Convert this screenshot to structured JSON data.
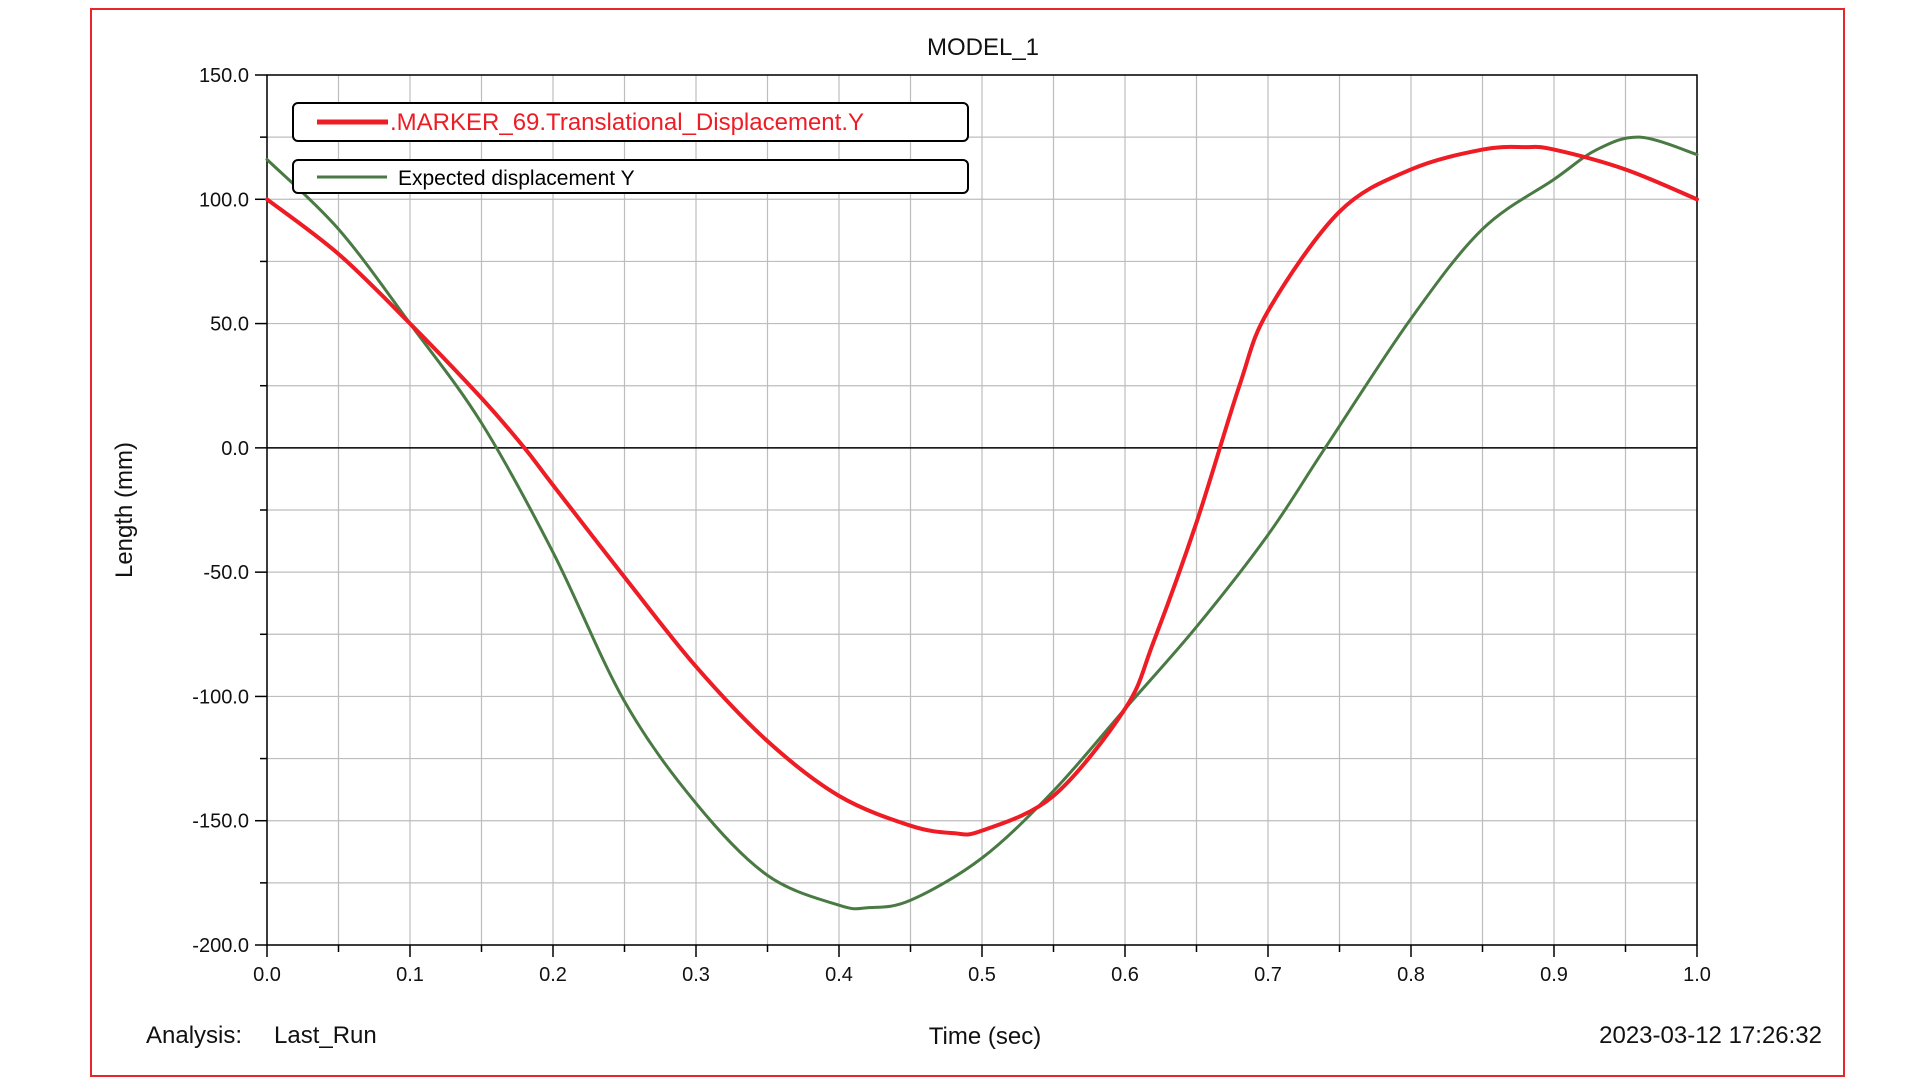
{
  "colors": {
    "frame": "#e8262a",
    "grid": "#bdbdbd",
    "axis": "#000000",
    "red_series": "#ee1c25",
    "green_series": "#4a7a43"
  },
  "chart_data": {
    "type": "line",
    "title": "MODEL_1",
    "xlabel": "Time (sec)",
    "ylabel": "Length (mm)",
    "xlim": [
      0.0,
      1.0
    ],
    "ylim": [
      -200.0,
      150.0
    ],
    "x_ticks": [
      "0.0",
      "0.1",
      "0.2",
      "0.3",
      "0.4",
      "0.5",
      "0.6",
      "0.7",
      "0.8",
      "0.9",
      "1.0"
    ],
    "y_ticks": [
      "150.0",
      "100.0",
      "50.0",
      "0.0",
      "-50.0",
      "-100.0",
      "-150.0",
      "-200.0"
    ],
    "grid": true,
    "legend_position": "top-left",
    "series": [
      {
        "name": ".MARKER_69.Translational_Displacement.Y",
        "x": [
          0.0,
          0.05,
          0.1,
          0.15,
          0.18,
          0.2,
          0.25,
          0.3,
          0.35,
          0.4,
          0.45,
          0.48,
          0.5,
          0.55,
          0.6,
          0.62,
          0.65,
          0.68,
          0.7,
          0.75,
          0.8,
          0.85,
          0.88,
          0.9,
          0.95,
          1.0
        ],
        "y": [
          100,
          78,
          50,
          20,
          0,
          -15,
          -52,
          -88,
          -118,
          -140,
          -152,
          -155,
          -154,
          -140,
          -105,
          -78,
          -30,
          25,
          55,
          95,
          112,
          120,
          121,
          120,
          112,
          100
        ]
      },
      {
        "name": "Expected displacement Y",
        "x": [
          0.0,
          0.05,
          0.1,
          0.15,
          0.2,
          0.25,
          0.3,
          0.35,
          0.4,
          0.42,
          0.45,
          0.5,
          0.55,
          0.6,
          0.65,
          0.7,
          0.74,
          0.8,
          0.85,
          0.9,
          0.93,
          0.96,
          1.0
        ],
        "y": [
          116,
          88,
          50,
          10,
          -42,
          -102,
          -143,
          -172,
          -184,
          -185,
          -182,
          -165,
          -138,
          -105,
          -72,
          -35,
          0,
          52,
          88,
          108,
          120,
          125,
          118
        ]
      }
    ]
  },
  "footer": {
    "analysis_label": "Analysis:",
    "analysis_value": "Last_Run",
    "timestamp": "2023-03-12 17:26:32"
  }
}
